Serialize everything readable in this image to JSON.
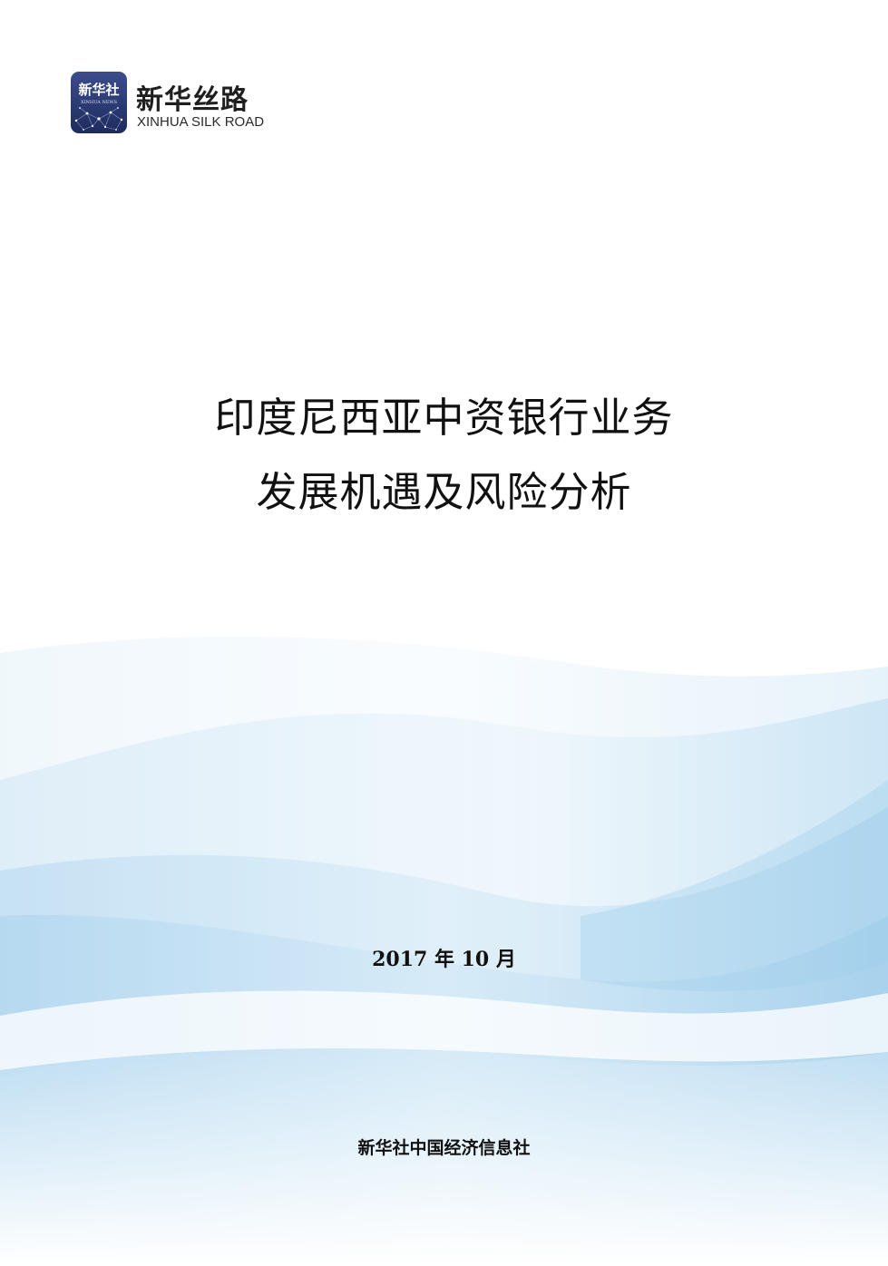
{
  "logo": {
    "badge_cn": "新华社",
    "badge_en": "XINHUA NEWS",
    "name_cn": "新华丝路",
    "name_en": "XINHUA SILK ROAD"
  },
  "title": {
    "line1": "印度尼西亚中资银行业务",
    "line2": "发展机遇及风险分析"
  },
  "date": "2017 年 10 月",
  "publisher": "新华社中国经济信息社",
  "colors": {
    "badge": "#2a3a73",
    "wave_light": "#e4f1fa",
    "wave_mid": "#b9dbf0",
    "wave_deep": "#8fc4e6",
    "text": "#111111"
  }
}
